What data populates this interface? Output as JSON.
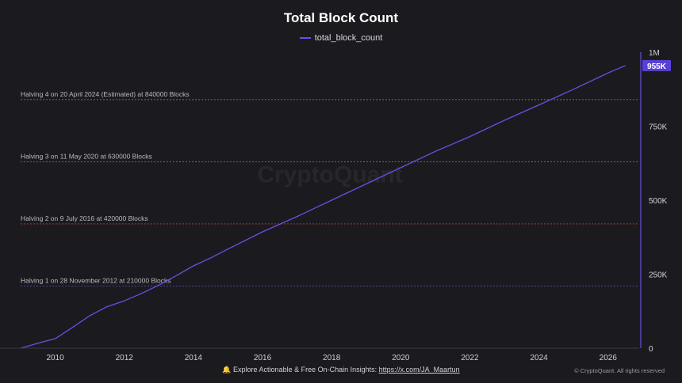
{
  "chart_data": {
    "type": "line",
    "title": "Total Block Count",
    "legend_position": "top-center",
    "series": [
      {
        "name": "total_block_count",
        "color": "#6b4de6",
        "x": [
          2009.0,
          2009.3,
          2009.6,
          2010.0,
          2010.5,
          2011.0,
          2011.5,
          2012.0,
          2012.5,
          2013.0,
          2013.5,
          2014.0,
          2014.5,
          2015.0,
          2016.0,
          2017.0,
          2018.0,
          2019.0,
          2020.0,
          2021.0,
          2022.0,
          2023.0,
          2024.0,
          2025.0,
          2026.0,
          2026.5
        ],
        "values": [
          0,
          10000,
          20000,
          32000,
          70000,
          110000,
          140000,
          160000,
          185000,
          213000,
          245000,
          278000,
          305000,
          335000,
          393000,
          445000,
          500000,
          555000,
          610000,
          665000,
          715000,
          770000,
          822000,
          875000,
          930000,
          955000
        ]
      }
    ],
    "x_ticks": [
      "2010",
      "2012",
      "2014",
      "2016",
      "2018",
      "2020",
      "2022",
      "2024",
      "2026"
    ],
    "x_tick_values": [
      2010,
      2012,
      2014,
      2016,
      2018,
      2020,
      2022,
      2024,
      2026
    ],
    "xlim": [
      2009.0,
      2026.9
    ],
    "y_ticks": [
      "0",
      "250K",
      "500K",
      "750K",
      "1M"
    ],
    "y_tick_values": [
      0,
      250000,
      500000,
      750000,
      1000000
    ],
    "ylim": [
      0,
      1000000
    ],
    "y_axis_side": "right",
    "last_value_label": "955K",
    "last_value": 955000,
    "grid": false,
    "annotations": [
      {
        "label": "Halving 1 on 28 November 2012 at 210000 Blocks",
        "value": 210000,
        "color": "#4a4fa8"
      },
      {
        "label": "Halving 2 on 9 July 2016 at 420000 Blocks",
        "value": 420000,
        "color": "#b0403c"
      },
      {
        "label": "Halving 3 on 11 May 2020 at 630000 Blocks",
        "value": 630000,
        "color": "#8f8f32"
      },
      {
        "label": "Halving 4 on 20 April 2024 (Estimated) at 840000 Blocks",
        "value": 840000,
        "color": "#7f8c7a"
      }
    ]
  },
  "watermark": "CryptoQuant",
  "footer": {
    "bell_icon": "bell-icon",
    "text": "Explore Actionable & Free On-Chain Insights: ",
    "link": "https://x.com/JA_Maartun"
  },
  "copyright": "© CryptoQuant. All rights reserved"
}
